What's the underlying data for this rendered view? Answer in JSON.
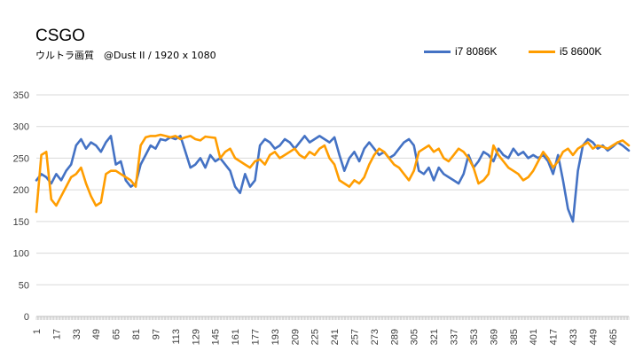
{
  "chart_data": {
    "type": "line",
    "title": "CSGO",
    "subtitle": "ウルトラ画質　@Dust II / 1920 x 1080",
    "xlabel": "",
    "ylabel": "",
    "ylim": [
      0,
      350
    ],
    "yticks": [
      0,
      50,
      100,
      150,
      200,
      250,
      300,
      350
    ],
    "xlim": [
      1,
      478
    ],
    "xticks": [
      1,
      17,
      33,
      49,
      65,
      81,
      97,
      113,
      129,
      145,
      161,
      177,
      193,
      209,
      225,
      241,
      257,
      273,
      289,
      305,
      321,
      337,
      353,
      369,
      385,
      401,
      417,
      433,
      449,
      465
    ],
    "grid": "horizontal",
    "legend_position": "top-right",
    "series": [
      {
        "name": "i7 8086K",
        "color": "#4472c4",
        "points": [
          [
            1,
            215
          ],
          [
            5,
            225
          ],
          [
            9,
            220
          ],
          [
            13,
            210
          ],
          [
            17,
            225
          ],
          [
            21,
            215
          ],
          [
            25,
            230
          ],
          [
            29,
            240
          ],
          [
            33,
            270
          ],
          [
            37,
            280
          ],
          [
            41,
            265
          ],
          [
            45,
            275
          ],
          [
            49,
            270
          ],
          [
            53,
            260
          ],
          [
            57,
            275
          ],
          [
            61,
            285
          ],
          [
            65,
            240
          ],
          [
            69,
            245
          ],
          [
            73,
            215
          ],
          [
            77,
            205
          ],
          [
            81,
            210
          ],
          [
            85,
            240
          ],
          [
            89,
            255
          ],
          [
            93,
            270
          ],
          [
            97,
            265
          ],
          [
            101,
            280
          ],
          [
            105,
            278
          ],
          [
            109,
            283
          ],
          [
            113,
            280
          ],
          [
            117,
            285
          ],
          [
            121,
            260
          ],
          [
            125,
            235
          ],
          [
            129,
            240
          ],
          [
            133,
            250
          ],
          [
            137,
            235
          ],
          [
            141,
            255
          ],
          [
            145,
            245
          ],
          [
            149,
            250
          ],
          [
            153,
            240
          ],
          [
            157,
            230
          ],
          [
            161,
            205
          ],
          [
            165,
            195
          ],
          [
            169,
            225
          ],
          [
            173,
            205
          ],
          [
            177,
            215
          ],
          [
            181,
            270
          ],
          [
            185,
            280
          ],
          [
            189,
            275
          ],
          [
            193,
            265
          ],
          [
            197,
            270
          ],
          [
            201,
            280
          ],
          [
            205,
            275
          ],
          [
            209,
            265
          ],
          [
            213,
            275
          ],
          [
            217,
            285
          ],
          [
            221,
            275
          ],
          [
            225,
            280
          ],
          [
            229,
            285
          ],
          [
            233,
            280
          ],
          [
            237,
            275
          ],
          [
            241,
            283
          ],
          [
            245,
            255
          ],
          [
            249,
            230
          ],
          [
            253,
            250
          ],
          [
            257,
            260
          ],
          [
            261,
            245
          ],
          [
            265,
            265
          ],
          [
            269,
            275
          ],
          [
            273,
            265
          ],
          [
            277,
            255
          ],
          [
            281,
            260
          ],
          [
            285,
            250
          ],
          [
            289,
            255
          ],
          [
            293,
            265
          ],
          [
            297,
            275
          ],
          [
            301,
            280
          ],
          [
            305,
            270
          ],
          [
            309,
            230
          ],
          [
            313,
            225
          ],
          [
            317,
            235
          ],
          [
            321,
            215
          ],
          [
            325,
            235
          ],
          [
            329,
            225
          ],
          [
            333,
            220
          ],
          [
            337,
            215
          ],
          [
            341,
            210
          ],
          [
            345,
            225
          ],
          [
            349,
            255
          ],
          [
            353,
            235
          ],
          [
            357,
            245
          ],
          [
            361,
            260
          ],
          [
            365,
            255
          ],
          [
            369,
            245
          ],
          [
            373,
            265
          ],
          [
            377,
            255
          ],
          [
            381,
            250
          ],
          [
            385,
            265
          ],
          [
            389,
            255
          ],
          [
            393,
            260
          ],
          [
            397,
            250
          ],
          [
            401,
            255
          ],
          [
            405,
            250
          ],
          [
            409,
            255
          ],
          [
            413,
            245
          ],
          [
            417,
            225
          ],
          [
            421,
            255
          ],
          [
            425,
            215
          ],
          [
            429,
            170
          ],
          [
            433,
            150
          ],
          [
            437,
            230
          ],
          [
            441,
            270
          ],
          [
            445,
            280
          ],
          [
            449,
            275
          ],
          [
            453,
            265
          ],
          [
            457,
            270
          ],
          [
            461,
            262
          ],
          [
            465,
            268
          ],
          [
            469,
            275
          ],
          [
            473,
            270
          ],
          [
            478,
            262
          ]
        ]
      },
      {
        "name": "i5 8600K",
        "color": "#ff9d00",
        "points": [
          [
            1,
            165
          ],
          [
            5,
            255
          ],
          [
            9,
            260
          ],
          [
            13,
            185
          ],
          [
            17,
            175
          ],
          [
            21,
            190
          ],
          [
            25,
            205
          ],
          [
            29,
            220
          ],
          [
            33,
            225
          ],
          [
            37,
            235
          ],
          [
            41,
            210
          ],
          [
            45,
            190
          ],
          [
            49,
            175
          ],
          [
            53,
            180
          ],
          [
            57,
            225
          ],
          [
            61,
            230
          ],
          [
            65,
            230
          ],
          [
            69,
            225
          ],
          [
            73,
            220
          ],
          [
            77,
            215
          ],
          [
            81,
            205
          ],
          [
            85,
            270
          ],
          [
            89,
            283
          ],
          [
            93,
            285
          ],
          [
            97,
            285
          ],
          [
            101,
            287
          ],
          [
            105,
            285
          ],
          [
            109,
            283
          ],
          [
            113,
            285
          ],
          [
            117,
            280
          ],
          [
            121,
            283
          ],
          [
            125,
            285
          ],
          [
            129,
            280
          ],
          [
            133,
            278
          ],
          [
            137,
            284
          ],
          [
            141,
            283
          ],
          [
            145,
            282
          ],
          [
            149,
            250
          ],
          [
            153,
            260
          ],
          [
            157,
            265
          ],
          [
            161,
            250
          ],
          [
            165,
            245
          ],
          [
            169,
            240
          ],
          [
            173,
            235
          ],
          [
            177,
            245
          ],
          [
            181,
            248
          ],
          [
            185,
            240
          ],
          [
            189,
            255
          ],
          [
            193,
            260
          ],
          [
            197,
            250
          ],
          [
            201,
            255
          ],
          [
            205,
            260
          ],
          [
            209,
            265
          ],
          [
            213,
            255
          ],
          [
            217,
            250
          ],
          [
            221,
            260
          ],
          [
            225,
            255
          ],
          [
            229,
            265
          ],
          [
            233,
            270
          ],
          [
            237,
            250
          ],
          [
            241,
            240
          ],
          [
            245,
            215
          ],
          [
            249,
            210
          ],
          [
            253,
            205
          ],
          [
            257,
            215
          ],
          [
            261,
            210
          ],
          [
            265,
            220
          ],
          [
            269,
            240
          ],
          [
            273,
            255
          ],
          [
            277,
            265
          ],
          [
            281,
            260
          ],
          [
            285,
            250
          ],
          [
            289,
            240
          ],
          [
            293,
            235
          ],
          [
            297,
            225
          ],
          [
            301,
            215
          ],
          [
            305,
            230
          ],
          [
            309,
            260
          ],
          [
            313,
            265
          ],
          [
            317,
            270
          ],
          [
            321,
            260
          ],
          [
            325,
            265
          ],
          [
            329,
            250
          ],
          [
            333,
            245
          ],
          [
            337,
            255
          ],
          [
            341,
            265
          ],
          [
            345,
            260
          ],
          [
            349,
            250
          ],
          [
            353,
            235
          ],
          [
            357,
            210
          ],
          [
            361,
            215
          ],
          [
            365,
            225
          ],
          [
            369,
            270
          ],
          [
            373,
            255
          ],
          [
            377,
            245
          ],
          [
            381,
            235
          ],
          [
            385,
            230
          ],
          [
            389,
            225
          ],
          [
            393,
            215
          ],
          [
            397,
            220
          ],
          [
            401,
            230
          ],
          [
            405,
            245
          ],
          [
            409,
            260
          ],
          [
            413,
            250
          ],
          [
            417,
            235
          ],
          [
            421,
            245
          ],
          [
            425,
            260
          ],
          [
            429,
            265
          ],
          [
            433,
            255
          ],
          [
            437,
            265
          ],
          [
            441,
            270
          ],
          [
            445,
            275
          ],
          [
            449,
            265
          ],
          [
            453,
            270
          ],
          [
            457,
            268
          ],
          [
            461,
            265
          ],
          [
            465,
            270
          ],
          [
            469,
            275
          ],
          [
            473,
            278
          ],
          [
            478,
            270
          ]
        ]
      }
    ]
  }
}
